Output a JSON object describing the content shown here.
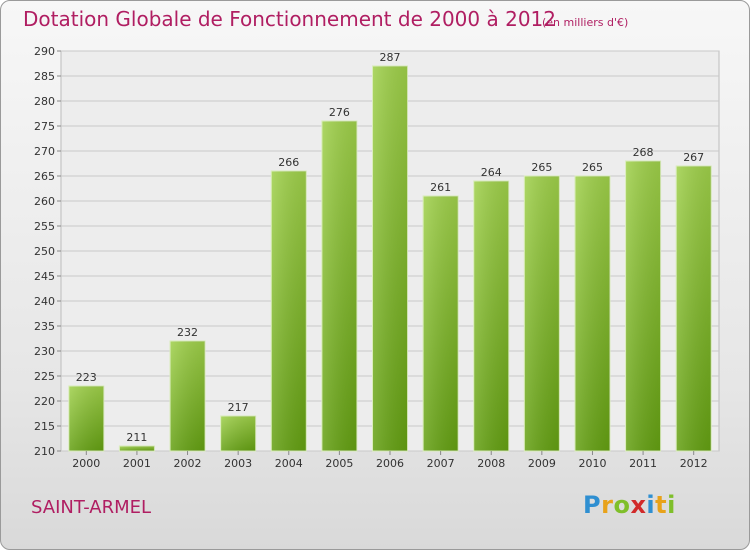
{
  "title": "Dotation Globale de Fonctionnement de 2000 à 2012",
  "subtitle": "(en milliers d'€)",
  "commune": "SAINT-ARMEL",
  "logo": {
    "letters": [
      "P",
      "r",
      "o",
      "x",
      "i",
      "t",
      "i"
    ],
    "colors": [
      "#2f8fd1",
      "#e8a21a",
      "#7fbf2a",
      "#d12a2a",
      "#2f8fd1",
      "#e8a21a",
      "#7fbf2a"
    ]
  },
  "chart_data": {
    "type": "bar",
    "categories": [
      "2000",
      "2001",
      "2002",
      "2003",
      "2004",
      "2005",
      "2006",
      "2007",
      "2008",
      "2009",
      "2010",
      "2011",
      "2012"
    ],
    "values": [
      223,
      211,
      232,
      217,
      266,
      276,
      287,
      261,
      264,
      265,
      265,
      268,
      267
    ],
    "ylim": [
      210,
      290
    ],
    "yticks": [
      210,
      215,
      220,
      225,
      230,
      235,
      240,
      245,
      250,
      255,
      260,
      265,
      270,
      275,
      280,
      285,
      290
    ],
    "grid": true,
    "bar_color": "#7db82e"
  }
}
